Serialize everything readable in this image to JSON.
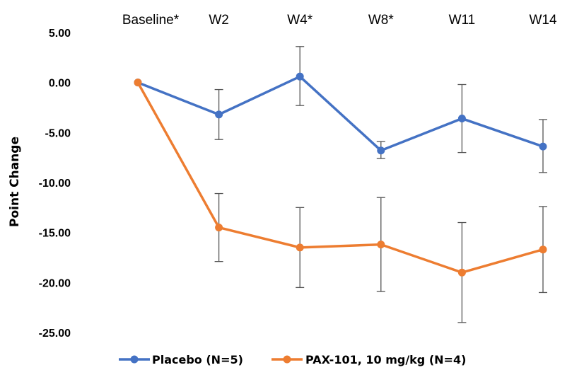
{
  "chart_data": {
    "type": "line",
    "categories": [
      "Baseline*",
      "W2",
      "W4*",
      "W8*",
      "W11",
      "W14"
    ],
    "ylabel": "Point Change",
    "xlabel": "",
    "title": "",
    "ylim": [
      -25,
      5
    ],
    "yticks": [
      5,
      0,
      -5,
      -10,
      -15,
      -20,
      -25
    ],
    "ytick_labels": [
      "5.00",
      "0.00",
      "-5.00",
      "-10.00",
      "-15.00",
      "-20.00",
      "-25.00"
    ],
    "x_axis_position": "top",
    "grid": false,
    "legend_position": "bottom",
    "series": [
      {
        "name": "Placebo (N=5)",
        "color": "#4472C4",
        "values": [
          0,
          -3.2,
          0.6,
          -6.8,
          -3.6,
          -6.4
        ],
        "error_low": [
          null,
          -5.7,
          -2.3,
          -7.6,
          -7.0,
          -9.0
        ],
        "error_high": [
          null,
          -0.7,
          3.6,
          -5.9,
          -0.2,
          -3.7
        ]
      },
      {
        "name": "PAX-101, 10 mg/kg (N=4)",
        "color": "#ED7D31",
        "values": [
          0,
          -14.5,
          -16.5,
          -16.2,
          -19.0,
          -16.7
        ],
        "error_low": [
          null,
          -17.9,
          -20.5,
          -20.9,
          -24.0,
          -21.0
        ],
        "error_high": [
          null,
          -11.1,
          -12.5,
          -11.5,
          -14.0,
          -12.4
        ]
      }
    ]
  }
}
